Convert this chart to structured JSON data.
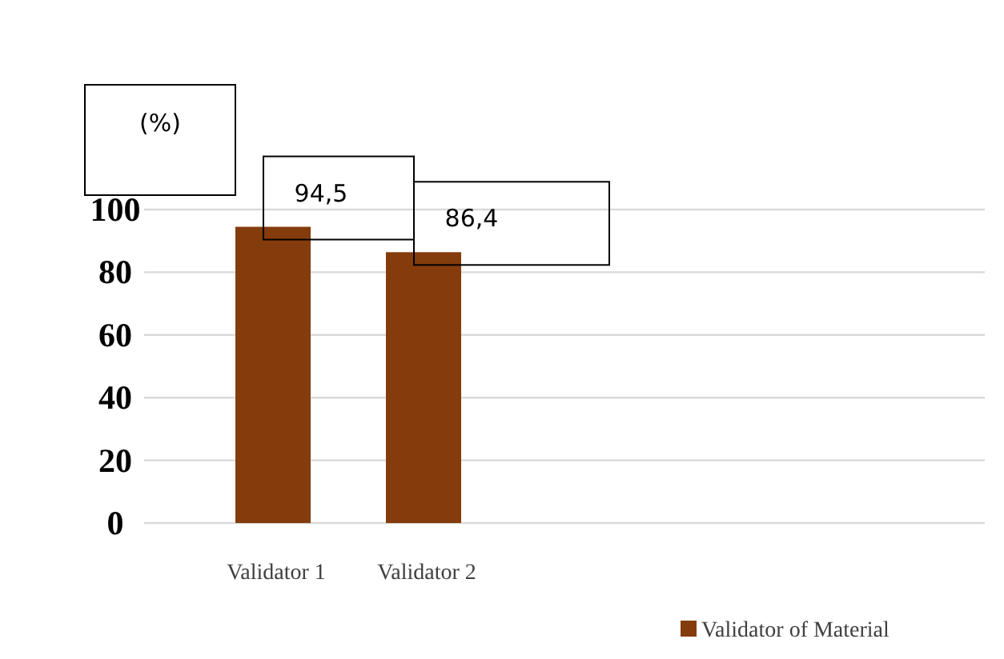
{
  "chart_data": {
    "type": "bar",
    "ylabel": "(%)",
    "categories": [
      "Validator 1",
      "Validator 2"
    ],
    "series": [
      {
        "name": "Validator of Material",
        "color": "#843c0c",
        "values": [
          94.5,
          86.4
        ],
        "value_labels": [
          "94,5",
          "86,4"
        ]
      }
    ],
    "ylim": [
      0,
      100
    ],
    "yticks": [
      0,
      20,
      40,
      60,
      80,
      100
    ],
    "grid": "y",
    "legend": "bottom right"
  }
}
